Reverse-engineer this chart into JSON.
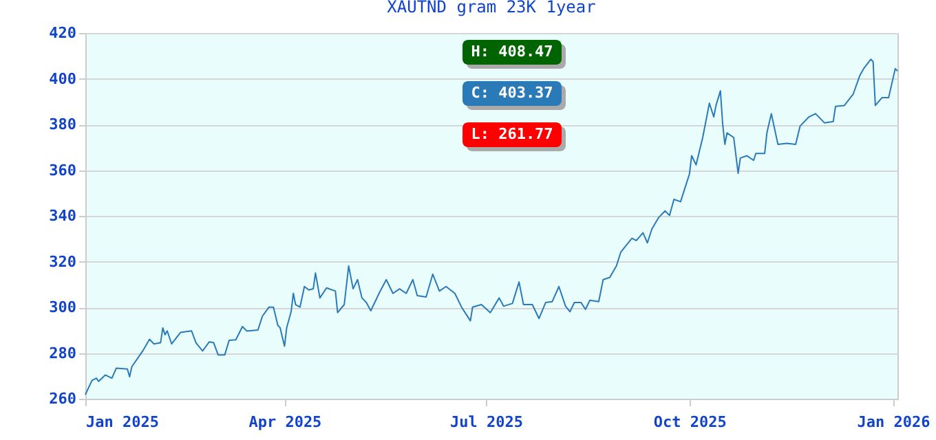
{
  "chart_data": {
    "type": "line",
    "title": "XAUTND gram 23K 1year",
    "x": [
      "2025-01-01",
      "2025-01-04",
      "2025-01-06",
      "2025-01-07",
      "2025-01-10",
      "2025-01-13",
      "2025-01-15",
      "2025-01-20",
      "2025-01-21",
      "2025-01-22",
      "2025-01-27",
      "2025-01-30",
      "2025-02-01",
      "2025-02-04",
      "2025-02-05",
      "2025-02-06",
      "2025-02-07",
      "2025-02-09",
      "2025-02-13",
      "2025-02-18",
      "2025-02-20",
      "2025-02-23",
      "2025-02-26",
      "2025-02-28",
      "2025-03-02",
      "2025-03-05",
      "2025-03-07",
      "2025-03-10",
      "2025-03-13",
      "2025-03-15",
      "2025-03-20",
      "2025-03-22",
      "2025-03-25",
      "2025-03-27",
      "2025-03-29",
      "2025-03-30",
      "2025-04-01",
      "2025-04-02",
      "2025-04-04",
      "2025-04-05",
      "2025-04-06",
      "2025-04-08",
      "2025-04-10",
      "2025-04-12",
      "2025-04-14",
      "2025-04-15",
      "2025-04-17",
      "2025-04-20",
      "2025-04-24",
      "2025-04-25",
      "2025-04-28",
      "2025-04-30",
      "2025-05-02",
      "2025-05-04",
      "2025-05-06",
      "2025-05-08",
      "2025-05-10",
      "2025-05-14",
      "2025-05-17",
      "2025-05-20",
      "2025-05-23",
      "2025-05-26",
      "2025-05-29",
      "2025-05-31",
      "2025-06-04",
      "2025-06-07",
      "2025-06-10",
      "2025-06-13",
      "2025-06-17",
      "2025-06-20",
      "2025-06-22",
      "2025-06-24",
      "2025-06-25",
      "2025-06-29",
      "2025-07-03",
      "2025-07-07",
      "2025-07-09",
      "2025-07-13",
      "2025-07-16",
      "2025-07-18",
      "2025-07-22",
      "2025-07-25",
      "2025-07-28",
      "2025-07-31",
      "2025-08-03",
      "2025-08-06",
      "2025-08-08",
      "2025-08-10",
      "2025-08-13",
      "2025-08-15",
      "2025-08-17",
      "2025-08-21",
      "2025-08-23",
      "2025-08-26",
      "2025-08-29",
      "2025-08-31",
      "2025-09-05",
      "2025-09-07",
      "2025-09-10",
      "2025-09-12",
      "2025-09-14",
      "2025-09-17",
      "2025-09-20",
      "2025-09-22",
      "2025-09-24",
      "2025-09-27",
      "2025-09-29",
      "2025-10-01",
      "2025-10-02",
      "2025-10-04",
      "2025-10-05",
      "2025-10-07",
      "2025-10-09",
      "2025-10-10",
      "2025-10-12",
      "2025-10-13",
      "2025-10-15",
      "2025-10-16",
      "2025-10-17",
      "2025-10-18",
      "2025-10-21",
      "2025-10-23",
      "2025-10-24",
      "2025-10-27",
      "2025-10-30",
      "2025-10-31",
      "2025-11-04",
      "2025-11-05",
      "2025-11-07",
      "2025-11-10",
      "2025-11-14",
      "2025-11-18",
      "2025-11-20",
      "2025-11-24",
      "2025-11-27",
      "2025-12-01",
      "2025-12-05",
      "2025-12-06",
      "2025-12-10",
      "2025-12-14",
      "2025-12-17",
      "2025-12-19",
      "2025-12-22",
      "2025-12-23",
      "2025-12-24",
      "2025-12-27",
      "2025-12-30",
      "2026-01-02",
      "2026-01-03"
    ],
    "series": [
      {
        "color": "#2a7ab8",
        "values": [
          261.8,
          268,
          269,
          267.6,
          270.4,
          269,
          273.4,
          273,
          269.6,
          274,
          281,
          286,
          284,
          284.5,
          291,
          288,
          289.7,
          284,
          289,
          289.7,
          284.5,
          280.9,
          284.9,
          284.5,
          279.2,
          279.2,
          285.6,
          285.8,
          291.6,
          289.6,
          290.1,
          296.1,
          300.1,
          300.1,
          292.1,
          291.1,
          283,
          291.1,
          298.1,
          306.1,
          301.2,
          300.1,
          309.1,
          307.6,
          308.1,
          315,
          304.1,
          308.5,
          307.1,
          297.7,
          301.2,
          318.1,
          308.1,
          312.1,
          304.1,
          302.1,
          298.5,
          306.6,
          312.1,
          306.1,
          308.1,
          306.1,
          312.1,
          305.1,
          304.5,
          314.5,
          307.1,
          309.1,
          306.1,
          300.1,
          297.1,
          294.1,
          300.1,
          301.2,
          297.7,
          304.1,
          300.5,
          301.7,
          311.1,
          301.2,
          301.2,
          295.1,
          302.1,
          302.5,
          309.1,
          300.5,
          298.1,
          302.1,
          302.1,
          299.1,
          303.1,
          302.5,
          312.1,
          313.1,
          318.1,
          324.2,
          330.2,
          329.2,
          332.6,
          328.2,
          334.2,
          339.2,
          342.2,
          340.2,
          347.2,
          346.2,
          352.3,
          358.3,
          366.3,
          362.3,
          366.3,
          374.3,
          384.3,
          389.3,
          383.3,
          388.3,
          394.7,
          380.3,
          371.3,
          376.3,
          374.3,
          358.6,
          365.3,
          366.3,
          364.3,
          367.3,
          367.3,
          376.3,
          384.7,
          371.3,
          371.7,
          371.3,
          379.3,
          383.3,
          384.7,
          380.7,
          381.3,
          387.9,
          388.3,
          393.3,
          401.4,
          404.8,
          408.5,
          407.4,
          388.3,
          391.7,
          391.7,
          404.4,
          403.4
        ]
      }
    ],
    "xlim": [
      "2025-01-01",
      "2026-01-03"
    ],
    "xticks": [
      {
        "value": "2025-01-01",
        "label": "Jan 2025"
      },
      {
        "value": "2025-04-01",
        "label": "Apr 2025"
      },
      {
        "value": "2025-07-01",
        "label": "Jul 2025"
      },
      {
        "value": "2025-10-01",
        "label": "Oct 2025"
      },
      {
        "value": "2026-01-01",
        "label": "Jan 2026"
      }
    ],
    "ylim": [
      260,
      420
    ],
    "yticks": [
      260,
      280,
      300,
      320,
      340,
      360,
      380,
      400,
      420
    ],
    "grid": "y",
    "legend": false,
    "marker": "none",
    "line_style": "solid",
    "annotations": [
      "H: 408.47",
      "C: 403.37",
      "L: 261.77"
    ]
  }
}
